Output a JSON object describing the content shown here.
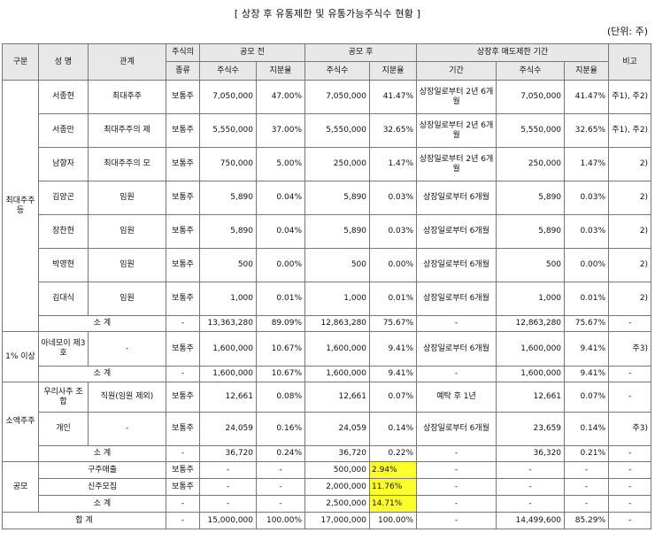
{
  "title": "[ 상장 후 유통제한 및 유통가능주식수 현황 ]",
  "unit": "(단위: 주)",
  "header": {
    "category": "구분",
    "name": "성 명",
    "relation": "관계",
    "stock_type_1": "주식의",
    "stock_type_2": "종류",
    "pre_ipo": "공모 전",
    "post_ipo": "공모 후",
    "restricted": "상장후 매도제한 기간",
    "shares": "주식수",
    "ratio": "지분율",
    "period": "기간",
    "note": "비고"
  },
  "groups": {
    "major": "최대주주등",
    "over1": "1% 이상",
    "minor": "소액주주",
    "ipo": "공모",
    "total": "합 계"
  },
  "rows": [
    {
      "name": "서종현",
      "rel": "최대주주",
      "type": "보통주",
      "pre_s": "7,050,000",
      "pre_r": "47.00%",
      "post_s": "7,050,000",
      "post_r": "41.47%",
      "period": "상장일로부터 2년 6개월",
      "res_s": "7,050,000",
      "res_r": "41.47%",
      "note": "주1), 주2)"
    },
    {
      "name": "서종만",
      "rel": "최대주주의 제",
      "type": "보통주",
      "pre_s": "5,550,000",
      "pre_r": "37.00%",
      "post_s": "5,550,000",
      "post_r": "32.65%",
      "period": "상장일로부터 2년 6개월",
      "res_s": "5,550,000",
      "res_r": "32.65%",
      "note": "주1), 주2)"
    },
    {
      "name": "남향자",
      "rel": "최대주주의 모",
      "type": "보통주",
      "pre_s": "750,000",
      "pre_r": "5.00%",
      "post_s": "250,000",
      "post_r": "1.47%",
      "period": "상장일로부터 2년 6개월",
      "res_s": "250,000",
      "res_r": "1.47%",
      "note": "2)"
    },
    {
      "name": "김양곤",
      "rel": "임원",
      "type": "보통주",
      "pre_s": "5,890",
      "pre_r": "0.04%",
      "post_s": "5,890",
      "post_r": "0.03%",
      "period": "상장일로부터 6개월",
      "res_s": "5,890",
      "res_r": "0.03%",
      "note": "2)"
    },
    {
      "name": "장찬현",
      "rel": "임원",
      "type": "보통주",
      "pre_s": "5,890",
      "pre_r": "0.04%",
      "post_s": "5,890",
      "post_r": "0.03%",
      "period": "상장일로부터 6개월",
      "res_s": "5,890",
      "res_r": "0.03%",
      "note": "2)"
    },
    {
      "name": "박영현",
      "rel": "임원",
      "type": "보통주",
      "pre_s": "500",
      "pre_r": "0.00%",
      "post_s": "500",
      "post_r": "0.00%",
      "period": "상장일로부터 6개월",
      "res_s": "500",
      "res_r": "0.00%",
      "note": "2)"
    },
    {
      "name": "김대식",
      "rel": "임원",
      "type": "보통주",
      "pre_s": "1,000",
      "pre_r": "0.01%",
      "post_s": "1,000",
      "post_r": "0.01%",
      "period": "상장일로부터 6개월",
      "res_s": "1,000",
      "res_r": "0.01%",
      "note": "2)"
    }
  ],
  "sub_major": {
    "label": "소 계",
    "type": "-",
    "pre_s": "13,363,280",
    "pre_r": "89.09%",
    "post_s": "12,863,280",
    "post_r": "75.67%",
    "period": "-",
    "res_s": "12,863,280",
    "res_r": "75.67%",
    "note": "-"
  },
  "over1_row": {
    "name": "아네모이 제3호",
    "rel": "-",
    "type": "보통주",
    "pre_s": "1,600,000",
    "pre_r": "10.67%",
    "post_s": "1,600,000",
    "post_r": "9.41%",
    "period": "상장일로부터 6개월",
    "res_s": "1,600,000",
    "res_r": "9.41%",
    "note": "주3)"
  },
  "sub_over1": {
    "label": "소 계",
    "type": "-",
    "pre_s": "1,600,000",
    "pre_r": "10.67%",
    "post_s": "1,600,000",
    "post_r": "9.41%",
    "period": "-",
    "res_s": "1,600,000",
    "res_r": "9.41%",
    "note": "-"
  },
  "minor_rows": [
    {
      "name": "우리사주 조합",
      "rel": "직원(임원 제외)",
      "type": "보통주",
      "pre_s": "12,661",
      "pre_r": "0.08%",
      "post_s": "12,661",
      "post_r": "0.07%",
      "period": "예탁 후 1년",
      "res_s": "12,661",
      "res_r": "0.07%",
      "note": "-"
    },
    {
      "name": "개인",
      "rel": "-",
      "type": "보통주",
      "pre_s": "24,059",
      "pre_r": "0.16%",
      "post_s": "24,059",
      "post_r": "0.14%",
      "period": "상장일로부터 6개월",
      "res_s": "23,659",
      "res_r": "0.14%",
      "note": "주3)"
    }
  ],
  "sub_minor": {
    "label": "소 계",
    "type": "-",
    "pre_s": "36,720",
    "pre_r": "0.24%",
    "post_s": "36,720",
    "post_r": "0.22%",
    "period": "-",
    "res_s": "36,320",
    "res_r": "0.21%",
    "note": "-"
  },
  "ipo_rows": [
    {
      "label": "구주매출",
      "type": "보통주",
      "pre_s": "-",
      "pre_r": "-",
      "post_s": "500,000",
      "post_r": "2.94%",
      "period": "-",
      "res_s": "-",
      "res_r": "-",
      "note": "-"
    },
    {
      "label": "신주모집",
      "type": "보통주",
      "pre_s": "-",
      "pre_r": "-",
      "post_s": "2,000,000",
      "post_r": "11.76%",
      "period": "-",
      "res_s": "-",
      "res_r": "-",
      "note": "-"
    },
    {
      "label": "소 계",
      "type": "-",
      "pre_s": "-",
      "pre_r": "-",
      "post_s": "2,500,000",
      "post_r": "14.71%",
      "period": "-",
      "res_s": "-",
      "res_r": "-",
      "note": "-"
    }
  ],
  "total_row": {
    "type": "-",
    "pre_s": "15,000,000",
    "pre_r": "100.00%",
    "post_s": "17,000,000",
    "post_r": "100.00%",
    "period": "-",
    "res_s": "14,499,600",
    "res_r": "85.29%",
    "note": "-"
  },
  "highlight_color": "#ffff2a"
}
